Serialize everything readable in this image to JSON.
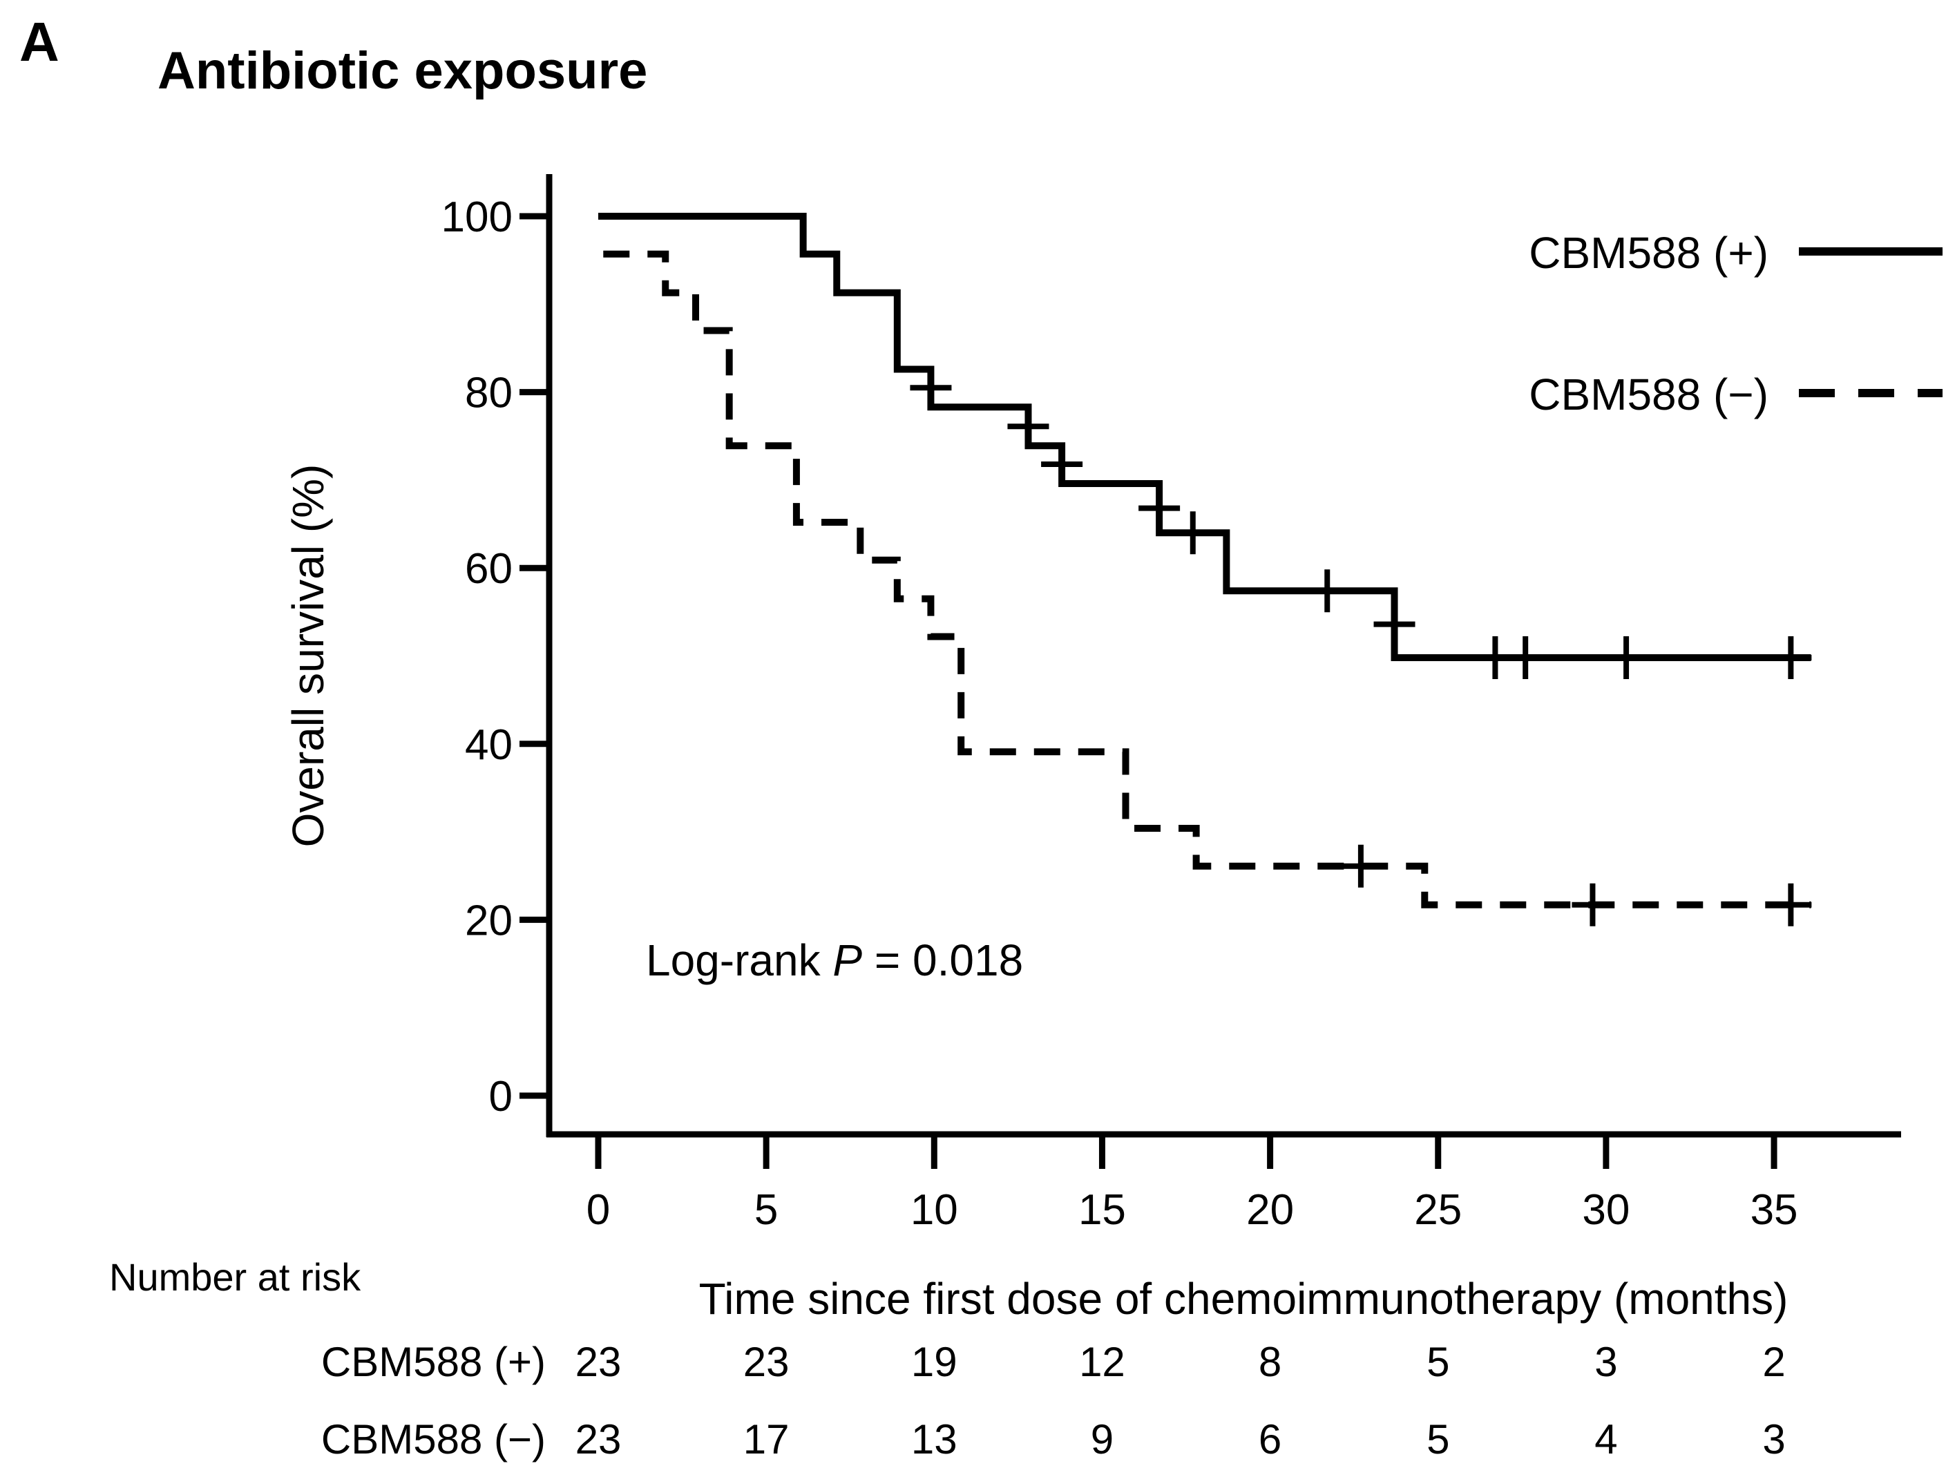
{
  "figure": {
    "background_color": "#ffffff",
    "line_color": "#000000"
  },
  "chart_data": {
    "type": "line",
    "subtype": "kaplan-meier-step-curves",
    "panel_label": "A",
    "title": "Antibiotic exposure",
    "xlabel": "Time since first dose of chemoimmunotherapy (months)",
    "ylabel": "Overall survival (%)",
    "xlim": [
      0,
      38.5
    ],
    "ylim": [
      0,
      100
    ],
    "x_ticks": [
      0,
      5,
      10,
      15,
      20,
      25,
      30,
      35
    ],
    "y_ticks": [
      0,
      20,
      40,
      60,
      80,
      100
    ],
    "grid": false,
    "legend_position": "top-right",
    "annotation": {
      "prefix": "Log-rank ",
      "p_symbol": "P",
      "value": " = 0.018"
    },
    "legend": [
      {
        "label": "CBM588 (+)",
        "style": "solid"
      },
      {
        "label": "CBM588 (−)",
        "style": "dashed"
      }
    ],
    "series": [
      {
        "name": "CBM588 (+)",
        "style": "solid",
        "start": {
          "t": 0,
          "v": 100
        },
        "end_t": 36.1,
        "steps": [
          {
            "t": 6.1,
            "v": 95.7
          },
          {
            "t": 7.1,
            "v": 91.3
          },
          {
            "t": 8.9,
            "v": 82.6
          },
          {
            "t": 9.9,
            "v": 78.3
          },
          {
            "t": 12.8,
            "v": 73.9
          },
          {
            "t": 13.8,
            "v": 69.6
          },
          {
            "t": 16.7,
            "v": 64.0
          },
          {
            "t": 18.7,
            "v": 57.4
          },
          {
            "t": 23.7,
            "v": 49.8
          }
        ],
        "censors": [
          {
            "t": 9.9,
            "v": 80.5
          },
          {
            "t": 12.8,
            "v": 76.1
          },
          {
            "t": 13.8,
            "v": 71.8
          },
          {
            "t": 16.7,
            "v": 66.8
          },
          {
            "t": 17.7,
            "v": 64.0
          },
          {
            "t": 21.7,
            "v": 57.4
          },
          {
            "t": 23.7,
            "v": 53.6
          },
          {
            "t": 26.7,
            "v": 49.8
          },
          {
            "t": 27.6,
            "v": 49.8
          },
          {
            "t": 30.6,
            "v": 49.8
          },
          {
            "t": 35.5,
            "v": 49.8
          }
        ]
      },
      {
        "name": "CBM588 (−)",
        "style": "dashed",
        "start": {
          "t": 0.15,
          "v": 95.7
        },
        "end_t": 36.1,
        "steps": [
          {
            "t": 2.0,
            "v": 91.3
          },
          {
            "t": 2.9,
            "v": 87.0
          },
          {
            "t": 3.9,
            "v": 73.9
          },
          {
            "t": 5.9,
            "v": 65.2
          },
          {
            "t": 7.8,
            "v": 60.9
          },
          {
            "t": 8.9,
            "v": 56.5
          },
          {
            "t": 9.9,
            "v": 52.2
          },
          {
            "t": 10.8,
            "v": 39.1
          },
          {
            "t": 15.7,
            "v": 30.4
          },
          {
            "t": 17.8,
            "v": 26.1
          },
          {
            "t": 24.6,
            "v": 21.7
          }
        ],
        "censors": [
          {
            "t": 22.7,
            "v": 26.1
          },
          {
            "t": 29.6,
            "v": 21.7
          },
          {
            "t": 35.5,
            "v": 21.7
          }
        ]
      }
    ],
    "number_at_risk": {
      "label": "Number at risk",
      "times": [
        0,
        5,
        10,
        15,
        20,
        25,
        30,
        35
      ],
      "rows": [
        {
          "label": "CBM588 (+)",
          "values": [
            23,
            23,
            19,
            12,
            8,
            5,
            3,
            2
          ]
        },
        {
          "label": "CBM588 (−)",
          "values": [
            23,
            17,
            13,
            9,
            6,
            5,
            4,
            3
          ]
        }
      ]
    }
  }
}
